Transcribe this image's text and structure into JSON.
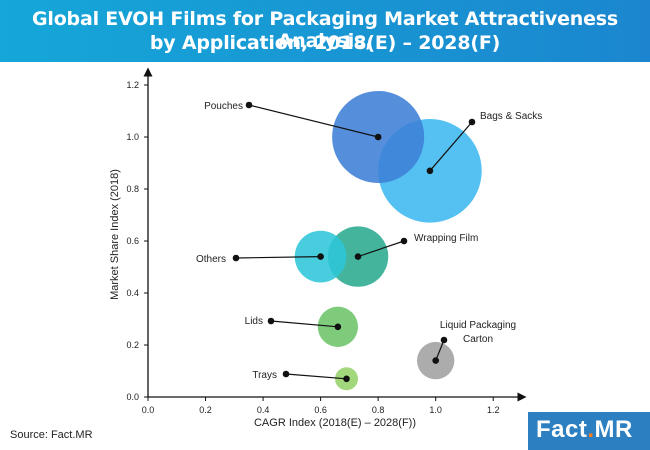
{
  "header": {
    "title_line1": "Global EVOH Films for Packaging Market Attractiveness Analysis,",
    "title_line2": "by Application, 2018(E) – 2028(F)"
  },
  "source": "Source: Fact.MR",
  "logo": {
    "text": "Fact",
    "dot": ".",
    "suffix": "MR"
  },
  "chart_data": {
    "type": "scatter",
    "title": "Global EVOH Films for Packaging Market Attractiveness Analysis, by Application, 2018(E) – 2028(F)",
    "xlabel": "CAGR Index (2018(E) – 2028(F))",
    "ylabel": "Market Share Index (2018)",
    "xlim": [
      0.0,
      1.3
    ],
    "ylim": [
      0.0,
      1.25
    ],
    "xticks": [
      "0.0",
      "0.2",
      "0.4",
      "0.6",
      "0.8",
      "1.0",
      "1.2"
    ],
    "yticks": [
      "0.0",
      "0.2",
      "0.4",
      "0.6",
      "0.8",
      "1.0",
      "1.2"
    ],
    "grid": false,
    "series": [
      {
        "name": "Pouches",
        "x": 0.8,
        "y": 1.0,
        "size": 0.16,
        "color": "#3d7fd6"
      },
      {
        "name": "Bags & Sacks",
        "x": 0.98,
        "y": 0.87,
        "size": 0.18,
        "color": "#3db8f0"
      },
      {
        "name": "Others",
        "x": 0.6,
        "y": 0.54,
        "size": 0.09,
        "color": "#2ec6d8"
      },
      {
        "name": "Wrapping Film",
        "x": 0.73,
        "y": 0.54,
        "size": 0.105,
        "color": "#2aaa8e"
      },
      {
        "name": "Lids",
        "x": 0.66,
        "y": 0.27,
        "size": 0.07,
        "color": "#6cc46a"
      },
      {
        "name": "Liquid Packaging Carton",
        "x": 1.0,
        "y": 0.14,
        "size": 0.065,
        "color": "#a0a0a0"
      },
      {
        "name": "Trays",
        "x": 0.69,
        "y": 0.07,
        "size": 0.04,
        "color": "#96d269"
      }
    ]
  }
}
